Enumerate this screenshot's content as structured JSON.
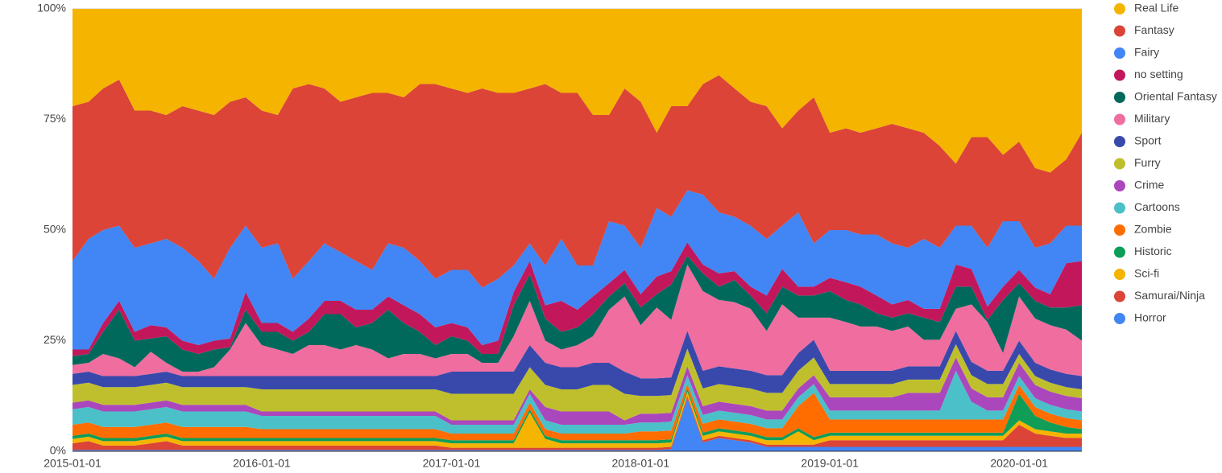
{
  "chart_data": {
    "type": "stacked_area",
    "x": [
      "2015-01-01",
      "2015-02-01",
      "2015-03-01",
      "2015-04-01",
      "2015-05-01",
      "2015-06-01",
      "2015-07-01",
      "2015-08-01",
      "2015-09-01",
      "2015-10-01",
      "2015-11-01",
      "2015-12-01",
      "2016-01-01",
      "2016-02-01",
      "2016-03-01",
      "2016-04-01",
      "2016-05-01",
      "2016-06-01",
      "2016-07-01",
      "2016-08-01",
      "2016-09-01",
      "2016-10-01",
      "2016-11-01",
      "2016-12-01",
      "2017-01-01",
      "2017-02-01",
      "2017-03-01",
      "2017-04-01",
      "2017-05-01",
      "2017-06-01",
      "2017-07-01",
      "2017-08-01",
      "2017-09-01",
      "2017-10-01",
      "2017-11-01",
      "2017-12-01",
      "2018-01-01",
      "2018-02-01",
      "2018-03-01",
      "2018-04-01",
      "2018-05-01",
      "2018-06-01",
      "2018-07-01",
      "2018-08-01",
      "2018-09-01",
      "2018-10-01",
      "2018-11-01",
      "2018-12-01",
      "2019-01-01",
      "2019-02-01",
      "2019-03-01",
      "2019-04-01",
      "2019-05-01",
      "2019-06-01",
      "2019-07-01",
      "2019-08-01",
      "2019-09-01",
      "2019-10-01",
      "2019-11-01",
      "2019-12-01",
      "2020-01-01",
      "2020-02-01",
      "2020-03-01",
      "2020-04-01",
      "2020-05-01"
    ],
    "xlim": [
      "2015-01-01",
      "2020-05-01"
    ],
    "xticks": [
      "2015-01-01",
      "2016-01-01",
      "2017-01-01",
      "2018-01-01",
      "2019-01-01",
      "2020-01-01"
    ],
    "ylim": [
      0,
      100
    ],
    "yticks": [
      {
        "value": 0,
        "label": "0%"
      },
      {
        "value": 25,
        "label": "25%"
      },
      {
        "value": 50,
        "label": "50%"
      },
      {
        "value": 75,
        "label": "75%"
      },
      {
        "value": 100,
        "label": "100%"
      }
    ],
    "grid": true,
    "legend": "right",
    "series": [
      {
        "name": "Real Life",
        "color": "#f4b400",
        "values": [
          22,
          21,
          18,
          16,
          23,
          23,
          24,
          22,
          23,
          24,
          21,
          20,
          23,
          24,
          18,
          17,
          18,
          21,
          20,
          19,
          19,
          20,
          17,
          17,
          18,
          19,
          18,
          19,
          19,
          18,
          17,
          19,
          19,
          24,
          24,
          18,
          21,
          28,
          22,
          22,
          17,
          15,
          18,
          21,
          22,
          27,
          23,
          20,
          28,
          27,
          28,
          27,
          26,
          27,
          28,
          31,
          35,
          29,
          29,
          33,
          30,
          36,
          37,
          34,
          28
        ]
      },
      {
        "name": "Fantasy",
        "color": "#db4437",
        "values": [
          35,
          31,
          32,
          33,
          31,
          30,
          28,
          32,
          34,
          37,
          33,
          29,
          31,
          29,
          43,
          40,
          35,
          34,
          37,
          40,
          34,
          34,
          40,
          44,
          41,
          40,
          45,
          42,
          39,
          35,
          41,
          33,
          39,
          34,
          24,
          31,
          33,
          17,
          25,
          19,
          25,
          31,
          29,
          28,
          30,
          22,
          23,
          33,
          22,
          23,
          23,
          24,
          27,
          27,
          24,
          23,
          14,
          20,
          25,
          15,
          18,
          18,
          16,
          15,
          21
        ]
      },
      {
        "name": "Fairy",
        "color": "#4285f4",
        "values": [
          20,
          25,
          21,
          17,
          19,
          18.5,
          20,
          21,
          19,
          14,
          20.5,
          15,
          17,
          18,
          12,
          13,
          13,
          11,
          11,
          9,
          12,
          13,
          12,
          11,
          12,
          13,
          13,
          14,
          6,
          4,
          9,
          14,
          10,
          7,
          14,
          10,
          10.5,
          15.5,
          12.3,
          11.8,
          15.8,
          13.8,
          12.3,
          13.8,
          12.8,
          9.8,
          16.8,
          9.8,
          10.8,
          11.8,
          11.8,
          13.8,
          13.8,
          11.8,
          15.8,
          13.8,
          8.8,
          9.8,
          13.3,
          14.8,
          11,
          9,
          11.5,
          8.5,
          8
        ]
      },
      {
        "name": "no setting",
        "color": "#c2185b",
        "values": [
          1.5,
          1,
          2,
          2,
          2,
          3,
          2,
          2,
          2,
          2,
          2,
          4,
          2,
          2,
          2,
          3,
          3,
          3,
          4,
          3,
          3,
          4,
          4,
          4,
          3,
          3,
          2,
          3,
          3,
          3,
          3,
          7,
          4,
          4,
          3,
          3,
          3,
          4,
          3,
          3,
          2,
          3,
          2,
          2,
          4,
          4,
          2,
          2,
          3,
          4,
          4,
          4,
          3,
          3,
          2,
          3,
          5,
          4,
          3,
          3,
          3,
          3,
          3,
          10,
          10
        ]
      },
      {
        "name": "Oriental Fantasy",
        "color": "#00695c",
        "values": [
          2,
          2,
          5,
          11,
          6,
          3,
          6,
          5,
          4,
          4,
          0.5,
          3,
          3,
          4,
          3,
          3,
          7,
          8,
          4,
          6,
          11,
          7,
          5,
          3,
          4,
          3,
          2,
          2,
          7,
          6,
          5,
          4,
          4,
          5,
          3,
          3,
          4,
          3,
          8,
          2,
          4,
          3,
          5,
          3,
          4,
          4,
          5,
          5,
          6,
          5,
          5,
          3,
          3,
          3,
          5,
          4,
          5,
          4,
          0.5,
          12,
          3,
          4,
          4,
          5,
          8
        ]
      },
      {
        "name": "Military",
        "color": "#f06d9f",
        "values": [
          2,
          2,
          5,
          4,
          2,
          5,
          2,
          1,
          1,
          2,
          6,
          12,
          7,
          6,
          5,
          7,
          7,
          6,
          7,
          6,
          4,
          5,
          5,
          4,
          4,
          4,
          2,
          2,
          8,
          10,
          5,
          4,
          5,
          6,
          12,
          17,
          12,
          16,
          13,
          15,
          18,
          15,
          15,
          14,
          10,
          16,
          8,
          5,
          12,
          11,
          10,
          10,
          9,
          9,
          6,
          6,
          5,
          13,
          11,
          4,
          10,
          10,
          10,
          10,
          8
        ]
      },
      {
        "name": "Sport",
        "color": "#3949ab",
        "values": [
          2.5,
          2.5,
          2.5,
          2.5,
          2.5,
          2.5,
          2.5,
          2.5,
          2.5,
          2.5,
          2.5,
          2.5,
          3,
          3,
          3,
          3,
          3,
          3,
          3,
          3,
          3,
          3,
          3,
          3,
          5,
          5,
          5,
          5,
          5,
          5,
          5,
          5,
          5,
          5,
          5,
          5,
          4,
          4,
          4,
          4,
          4,
          4,
          4,
          4,
          4,
          4,
          4,
          4,
          3,
          3,
          3,
          3,
          3,
          3,
          3,
          3,
          3,
          3,
          3,
          3,
          3,
          3,
          3,
          3,
          3
        ]
      },
      {
        "name": "Furry",
        "color": "#bfbf2e",
        "values": [
          4,
          4,
          4,
          4,
          4,
          4,
          4,
          4,
          4,
          4,
          4,
          4,
          5,
          5,
          5,
          5,
          5,
          5,
          5,
          5,
          5,
          5,
          5,
          5,
          6,
          6,
          6,
          6,
          6,
          5,
          5,
          5,
          5,
          6,
          6,
          6,
          4,
          4,
          4,
          4,
          4,
          4,
          4,
          4,
          4,
          4,
          4,
          4,
          3,
          3,
          3,
          3,
          3,
          3,
          3,
          3,
          3,
          3,
          3,
          3,
          2,
          2,
          2,
          2,
          2
        ]
      },
      {
        "name": "Crime",
        "color": "#ab47bc",
        "values": [
          1.5,
          1.5,
          1.5,
          1.5,
          1.5,
          1.5,
          1.5,
          1.5,
          1.5,
          1.5,
          1.5,
          1.5,
          1,
          1,
          1,
          1,
          1,
          1,
          1,
          1,
          1,
          1,
          1,
          1,
          1,
          1,
          1,
          1,
          1,
          1,
          3,
          3,
          3,
          3,
          3,
          1,
          2,
          2,
          2,
          2,
          2,
          2,
          2,
          2,
          2,
          2,
          2,
          2,
          3,
          3,
          3,
          3,
          3,
          4,
          4,
          4,
          3,
          3,
          3,
          3,
          3,
          3,
          3,
          3,
          3
        ]
      },
      {
        "name": "Cartoons",
        "color": "#4bc0c8",
        "values": [
          3.5,
          3.5,
          3.5,
          3.5,
          3.5,
          3.5,
          3.5,
          3.5,
          3.5,
          3.5,
          3.5,
          3.5,
          3,
          3,
          3,
          3,
          3,
          3,
          3,
          3,
          3,
          3,
          3,
          3,
          2,
          2,
          2,
          2,
          2,
          2,
          2,
          2,
          2,
          2,
          2,
          2,
          2,
          2,
          2,
          2,
          2,
          2,
          2,
          2,
          2,
          2,
          2,
          2,
          2,
          2,
          2,
          2,
          2,
          2,
          2,
          2,
          11,
          4,
          2,
          2,
          2,
          2,
          2,
          2,
          2
        ]
      },
      {
        "name": "Zombie",
        "color": "#ff6d00",
        "values": [
          2.5,
          2.5,
          2.5,
          2.5,
          2.5,
          2.5,
          2.5,
          2.5,
          2.5,
          2.5,
          2.5,
          2.5,
          2,
          2,
          2,
          2,
          2,
          2,
          2,
          2,
          2,
          2,
          2,
          2,
          1.5,
          1.5,
          1.5,
          1.5,
          1.5,
          1.5,
          1.5,
          1.5,
          1.5,
          1.5,
          1.5,
          1.5,
          2,
          2,
          2,
          1,
          2,
          2,
          2,
          2,
          2,
          2,
          5,
          10,
          3,
          3,
          3,
          3,
          3,
          3,
          3,
          3,
          3,
          3,
          3,
          3,
          2,
          2,
          2,
          2,
          2
        ]
      },
      {
        "name": "Historic",
        "color": "#0f9d58",
        "values": [
          0.7,
          0.7,
          0.7,
          0.7,
          0.7,
          0.7,
          0.7,
          0.7,
          0.7,
          0.7,
          0.7,
          0.7,
          0.7,
          0.7,
          0.7,
          0.7,
          0.7,
          0.7,
          0.7,
          0.7,
          0.7,
          0.7,
          0.7,
          0.7,
          0.7,
          0.7,
          0.7,
          0.7,
          0.7,
          0.7,
          0.7,
          0.7,
          0.7,
          0.7,
          0.7,
          0.7,
          0.7,
          0.7,
          0.7,
          0.7,
          0.7,
          0.7,
          0.7,
          0.7,
          0.7,
          0.7,
          0.7,
          0.7,
          0.7,
          0.7,
          0.7,
          0.7,
          0.7,
          0.7,
          0.7,
          0.7,
          0.7,
          0.7,
          0.7,
          0.7,
          6,
          3,
          2,
          1.5,
          1
        ]
      },
      {
        "name": "Sci-fi",
        "color": "#f4b400",
        "values": [
          1,
          1,
          1,
          1,
          1,
          1,
          1,
          1,
          1,
          1,
          1,
          1,
          1,
          1,
          1,
          1,
          1,
          1,
          1,
          1,
          1,
          1,
          1,
          1,
          1,
          1,
          1,
          1,
          1,
          8,
          2,
          1,
          1,
          1,
          1,
          1,
          1,
          1,
          1,
          1,
          1,
          1,
          1,
          1,
          1,
          1,
          3,
          1,
          1,
          1,
          1,
          1,
          1,
          1,
          1,
          1,
          1,
          1,
          1,
          1,
          1,
          1,
          1,
          1,
          1
        ]
      },
      {
        "name": "Samurai/Ninja",
        "color": "#db4437",
        "values": [
          1.5,
          2,
          1,
          1,
          1,
          1.5,
          2,
          1,
          1,
          1,
          1,
          1,
          1,
          1,
          1,
          1,
          1,
          1,
          1,
          1,
          1,
          1,
          1,
          1,
          0.5,
          0.5,
          0.5,
          0.5,
          0.5,
          0.5,
          0.5,
          0.5,
          0.5,
          0.5,
          0.5,
          0.5,
          0.5,
          0.5,
          0.5,
          0.5,
          0.5,
          0.5,
          0.5,
          0.5,
          0.5,
          0.5,
          0.5,
          0.5,
          1.5,
          1.5,
          1.5,
          1.5,
          1.5,
          1.5,
          1.5,
          1.5,
          1.5,
          1.5,
          1.5,
          1.5,
          5,
          3,
          2.5,
          2,
          2
        ]
      },
      {
        "name": "Horror",
        "color": "#4285f4",
        "values": [
          0.3,
          0.3,
          0.3,
          0.3,
          0.3,
          0.3,
          0.3,
          0.3,
          0.3,
          0.3,
          0.3,
          0.3,
          0.3,
          0.3,
          0.3,
          0.3,
          0.3,
          0.3,
          0.3,
          0.3,
          0.3,
          0.3,
          0.3,
          0.3,
          0.3,
          0.3,
          0.3,
          0.3,
          0.3,
          0.3,
          0.3,
          0.3,
          0.3,
          0.3,
          0.3,
          0.3,
          0.3,
          0.3,
          0.5,
          12,
          2,
          3,
          2.5,
          2,
          1,
          1,
          1,
          1,
          1,
          1,
          1,
          1,
          1,
          1,
          1,
          1,
          1,
          1,
          1,
          1,
          1,
          1,
          1,
          1,
          1
        ]
      }
    ]
  }
}
